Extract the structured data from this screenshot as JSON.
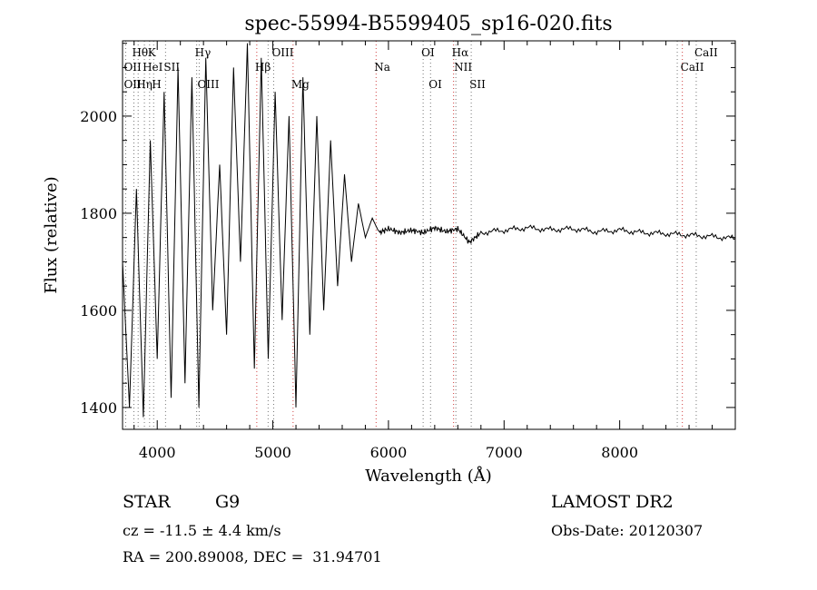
{
  "chart_data": {
    "type": "line",
    "title": "spec-55994-B5599405_sp16-020.fits",
    "xlabel": "Wavelength (Å)",
    "ylabel": "Flux (relative)",
    "xlim": [
      3700,
      9000
    ],
    "ylim": [
      1355,
      2155
    ],
    "xticks": [
      4000,
      5000,
      6000,
      7000,
      8000
    ],
    "yticks": [
      1400,
      1600,
      1800,
      2000
    ],
    "grid": false,
    "legend": "none",
    "series": [
      {
        "x": [
          3700,
          3760,
          3820,
          3880,
          3940,
          4000,
          4060,
          4120,
          4180,
          4240,
          4300,
          4360,
          4420,
          4480,
          4540,
          4600,
          4660,
          4720,
          4780,
          4840,
          4900,
          4960,
          5020,
          5080,
          5140,
          5200,
          5260,
          5320,
          5380,
          5440,
          5500,
          5560,
          5620,
          5680,
          5740,
          5800,
          5860,
          5920,
          6000,
          6100,
          6200,
          6300,
          6400,
          6500,
          6600,
          6700,
          6800,
          7000,
          7200,
          7400,
          7600,
          7800,
          8000,
          8200,
          8400,
          8600,
          8800,
          9000
        ],
        "y": [
          1700,
          1400,
          1850,
          1380,
          1950,
          1500,
          2050,
          1420,
          2100,
          1450,
          2080,
          1400,
          2120,
          1600,
          1900,
          1550,
          2100,
          1700,
          2150,
          1480,
          2120,
          1500,
          2050,
          1580,
          2000,
          1400,
          2080,
          1550,
          2000,
          1600,
          1950,
          1650,
          1880,
          1700,
          1820,
          1750,
          1790,
          1760,
          1768,
          1760,
          1765,
          1760,
          1770,
          1762,
          1768,
          1740,
          1760,
          1765,
          1770,
          1766,
          1768,
          1762,
          1765,
          1760,
          1758,
          1755,
          1752,
          1748
        ]
      }
    ],
    "line_marks": [
      {
        "label": "Hθ",
        "x": 3798,
        "row": 1
      },
      {
        "label": "K",
        "x": 3934,
        "row": 1
      },
      {
        "label": "Hγ",
        "x": 4341,
        "row": 1
      },
      {
        "label": "OII",
        "x": 3727,
        "row": 2
      },
      {
        "label": "HeI",
        "x": 3889,
        "row": 2
      },
      {
        "label": "SII",
        "x": 4072,
        "row": 2
      },
      {
        "label": "OII",
        "x": 3727,
        "row": 3
      },
      {
        "label": "Hη",
        "x": 3835,
        "row": 3
      },
      {
        "label": "H",
        "x": 3969,
        "row": 3
      },
      {
        "label": "OIII",
        "x": 4363,
        "row": 3
      },
      {
        "label": "Hβ",
        "x": 4861,
        "row": 2
      },
      {
        "label": "OIII",
        "x": 5007,
        "row": 1
      },
      {
        "label": "Mg",
        "x": 5175,
        "row": 3
      },
      {
        "label": "Na",
        "x": 5893,
        "row": 2
      },
      {
        "label": "OI",
        "x": 6300,
        "row": 1
      },
      {
        "label": "OI",
        "x": 6364,
        "row": 3
      },
      {
        "label": "Hα",
        "x": 6563,
        "row": 1
      },
      {
        "label": "NII",
        "x": 6583,
        "row": 2
      },
      {
        "label": "SII",
        "x": 6716,
        "row": 3
      },
      {
        "label": "CaII",
        "x": 8662,
        "row": 1
      },
      {
        "label": "CaII",
        "x": 8542,
        "row": 2
      }
    ],
    "red_lines": [
      4861,
      5175,
      5893,
      6563,
      8542
    ],
    "gray_lines": [
      3727,
      3798,
      3835,
      3889,
      3934,
      3969,
      4072,
      4341,
      4363,
      4959,
      5007,
      6300,
      6364,
      6583,
      6716,
      8498,
      8662
    ]
  },
  "info": {
    "class_label": "STAR",
    "subclass": "G9",
    "cz": "cz = -11.5 ± 4.4 km/s",
    "radec": "RA = 200.89008, DEC =  31.94701",
    "survey": "LAMOST DR2",
    "obs_date": "Obs-Date: 20120307"
  }
}
